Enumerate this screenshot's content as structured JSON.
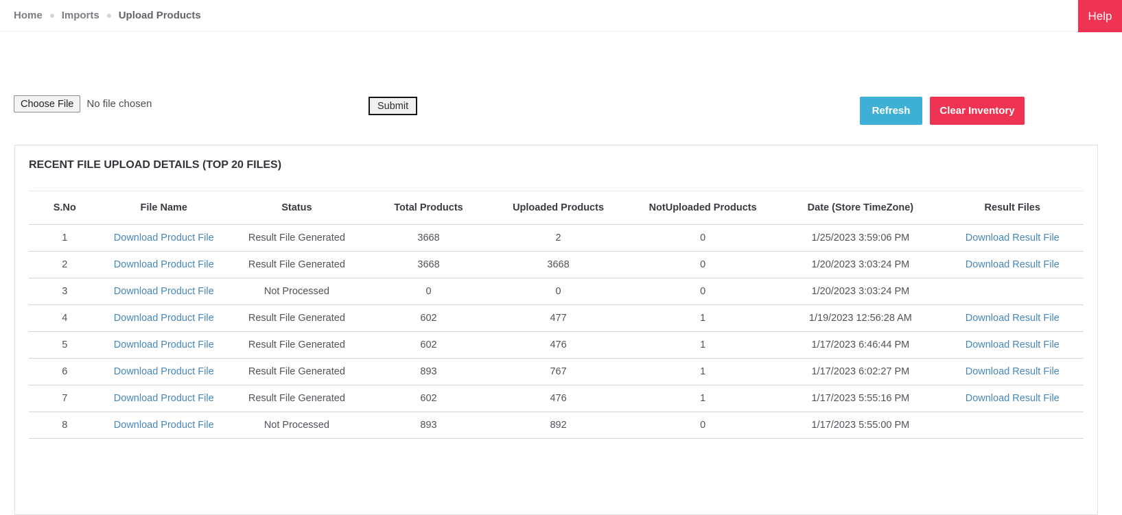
{
  "breadcrumb": {
    "items": [
      {
        "label": "Home"
      },
      {
        "label": "Imports"
      },
      {
        "label": "Upload Products"
      }
    ]
  },
  "header": {
    "help_label": "Help"
  },
  "upload": {
    "choose_file_label": "Choose File",
    "no_file_text": "No file chosen",
    "submit_label": "Submit",
    "refresh_label": "Refresh",
    "clear_inventory_label": "Clear Inventory"
  },
  "table": {
    "title": "RECENT FILE UPLOAD DETAILS (TOP 20 FILES)",
    "columns": [
      "S.No",
      "File Name",
      "Status",
      "Total Products",
      "Uploaded Products",
      "NotUploaded Products",
      "Date (Store TimeZone)",
      "Result Files"
    ],
    "rows": [
      {
        "sno": "1",
        "file_link": "Download Product File",
        "status": "Result File Generated",
        "total": "3668",
        "uploaded": "2",
        "not_uploaded": "0",
        "date": "1/25/2023 3:59:06 PM",
        "result_link": "Download Result File"
      },
      {
        "sno": "2",
        "file_link": "Download Product File",
        "status": "Result File Generated",
        "total": "3668",
        "uploaded": "3668",
        "not_uploaded": "0",
        "date": "1/20/2023 3:03:24 PM",
        "result_link": "Download Result File"
      },
      {
        "sno": "3",
        "file_link": "Download Product File",
        "status": "Not Processed",
        "total": "0",
        "uploaded": "0",
        "not_uploaded": "0",
        "date": "1/20/2023 3:03:24 PM",
        "result_link": ""
      },
      {
        "sno": "4",
        "file_link": "Download Product File",
        "status": "Result File Generated",
        "total": "602",
        "uploaded": "477",
        "not_uploaded": "1",
        "date": "1/19/2023 12:56:28 AM",
        "result_link": "Download Result File"
      },
      {
        "sno": "5",
        "file_link": "Download Product File",
        "status": "Result File Generated",
        "total": "602",
        "uploaded": "476",
        "not_uploaded": "1",
        "date": "1/17/2023 6:46:44 PM",
        "result_link": "Download Result File"
      },
      {
        "sno": "6",
        "file_link": "Download Product File",
        "status": "Result File Generated",
        "total": "893",
        "uploaded": "767",
        "not_uploaded": "1",
        "date": "1/17/2023 6:02:27 PM",
        "result_link": "Download Result File"
      },
      {
        "sno": "7",
        "file_link": "Download Product File",
        "status": "Result File Generated",
        "total": "602",
        "uploaded": "476",
        "not_uploaded": "1",
        "date": "1/17/2023 5:55:16 PM",
        "result_link": "Download Result File"
      },
      {
        "sno": "8",
        "file_link": "Download Product File",
        "status": "Not Processed",
        "total": "893",
        "uploaded": "892",
        "not_uploaded": "0",
        "date": "1/17/2023 5:55:00 PM",
        "result_link": ""
      }
    ]
  },
  "colors": {
    "accent_red": "#ee3452",
    "accent_cyan": "#3fb0d5",
    "link_blue": "#4787b8"
  }
}
